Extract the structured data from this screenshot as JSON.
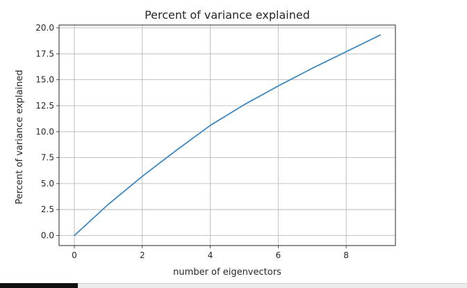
{
  "chart_data": {
    "type": "line",
    "title": "Percent of variance explained",
    "xlabel": "number of eigenvectors",
    "ylabel": "Percent of variance explained",
    "x": [
      0,
      1,
      2,
      3,
      4,
      5,
      6,
      7,
      8,
      9
    ],
    "series": [
      {
        "values": [
          0.0,
          3.0,
          5.7,
          8.2,
          10.6,
          12.6,
          14.4,
          16.1,
          17.7,
          19.3
        ]
      }
    ],
    "xlim": [
      -0.45,
      9.45
    ],
    "ylim": [
      -0.97,
      20.27
    ],
    "xticks": [
      0,
      2,
      4,
      6,
      8
    ],
    "xtick_labels": [
      "0",
      "2",
      "4",
      "6",
      "8"
    ],
    "yticks": [
      0.0,
      2.5,
      5.0,
      7.5,
      10.0,
      12.5,
      15.0,
      17.5,
      20.0
    ],
    "ytick_labels": [
      "0.0",
      "2.5",
      "5.0",
      "7.5",
      "10.0",
      "12.5",
      "15.0",
      "17.5",
      "20.0"
    ],
    "grid": true,
    "line_color": "#3d88c0",
    "grid_color": "#b0b0b0"
  }
}
